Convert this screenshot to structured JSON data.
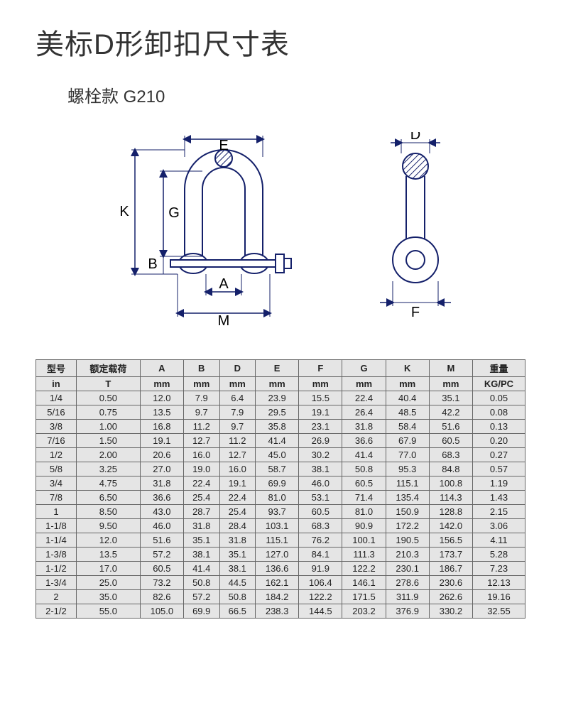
{
  "title": "美标D形卸扣尺寸表",
  "subtitle": "螺栓款 G210",
  "diagram": {
    "labels": {
      "E": "E",
      "K": "K",
      "G": "G",
      "B": "B",
      "A": "A",
      "M": "M",
      "D": "D",
      "F": "F"
    },
    "stroke": "#14206a",
    "stroke_width": 2,
    "hatch_fill": "#14206a"
  },
  "table": {
    "columns": [
      "型号",
      "额定载荷",
      "A",
      "B",
      "D",
      "E",
      "F",
      "G",
      "K",
      "M",
      "重量"
    ],
    "units": [
      "in",
      "T",
      "mm",
      "mm",
      "mm",
      "mm",
      "mm",
      "mm",
      "mm",
      "mm",
      "KG/PC"
    ],
    "rows": [
      [
        "1/4",
        "0.50",
        "12.0",
        "7.9",
        "6.4",
        "23.9",
        "15.5",
        "22.4",
        "40.4",
        "35.1",
        "0.05"
      ],
      [
        "5/16",
        "0.75",
        "13.5",
        "9.7",
        "7.9",
        "29.5",
        "19.1",
        "26.4",
        "48.5",
        "42.2",
        "0.08"
      ],
      [
        "3/8",
        "1.00",
        "16.8",
        "11.2",
        "9.7",
        "35.8",
        "23.1",
        "31.8",
        "58.4",
        "51.6",
        "0.13"
      ],
      [
        "7/16",
        "1.50",
        "19.1",
        "12.7",
        "11.2",
        "41.4",
        "26.9",
        "36.6",
        "67.9",
        "60.5",
        "0.20"
      ],
      [
        "1/2",
        "2.00",
        "20.6",
        "16.0",
        "12.7",
        "45.0",
        "30.2",
        "41.4",
        "77.0",
        "68.3",
        "0.27"
      ],
      [
        "5/8",
        "3.25",
        "27.0",
        "19.0",
        "16.0",
        "58.7",
        "38.1",
        "50.8",
        "95.3",
        "84.8",
        "0.57"
      ],
      [
        "3/4",
        "4.75",
        "31.8",
        "22.4",
        "19.1",
        "69.9",
        "46.0",
        "60.5",
        "115.1",
        "100.8",
        "1.19"
      ],
      [
        "7/8",
        "6.50",
        "36.6",
        "25.4",
        "22.4",
        "81.0",
        "53.1",
        "71.4",
        "135.4",
        "114.3",
        "1.43"
      ],
      [
        "1",
        "8.50",
        "43.0",
        "28.7",
        "25.4",
        "93.7",
        "60.5",
        "81.0",
        "150.9",
        "128.8",
        "2.15"
      ],
      [
        "1-1/8",
        "9.50",
        "46.0",
        "31.8",
        "28.4",
        "103.1",
        "68.3",
        "90.9",
        "172.2",
        "142.0",
        "3.06"
      ],
      [
        "1-1/4",
        "12.0",
        "51.6",
        "35.1",
        "31.8",
        "115.1",
        "76.2",
        "100.1",
        "190.5",
        "156.5",
        "4.11"
      ],
      [
        "1-3/8",
        "13.5",
        "57.2",
        "38.1",
        "35.1",
        "127.0",
        "84.1",
        "111.3",
        "210.3",
        "173.7",
        "5.28"
      ],
      [
        "1-1/2",
        "17.0",
        "60.5",
        "41.4",
        "38.1",
        "136.6",
        "91.9",
        "122.2",
        "230.1",
        "186.7",
        "7.23"
      ],
      [
        "1-3/4",
        "25.0",
        "73.2",
        "50.8",
        "44.5",
        "162.1",
        "106.4",
        "146.1",
        "278.6",
        "230.6",
        "12.13"
      ],
      [
        "2",
        "35.0",
        "82.6",
        "57.2",
        "50.8",
        "184.2",
        "122.2",
        "171.5",
        "311.9",
        "262.6",
        "19.16"
      ],
      [
        "2-1/2",
        "55.0",
        "105.0",
        "69.9",
        "66.5",
        "238.3",
        "144.5",
        "203.2",
        "376.9",
        "330.2",
        "32.55"
      ]
    ],
    "header_bg": "#e5e5e5",
    "cell_bg": "#e5e5e5",
    "border_color": "#666666",
    "text_color": "#222222",
    "font_size": 13
  }
}
